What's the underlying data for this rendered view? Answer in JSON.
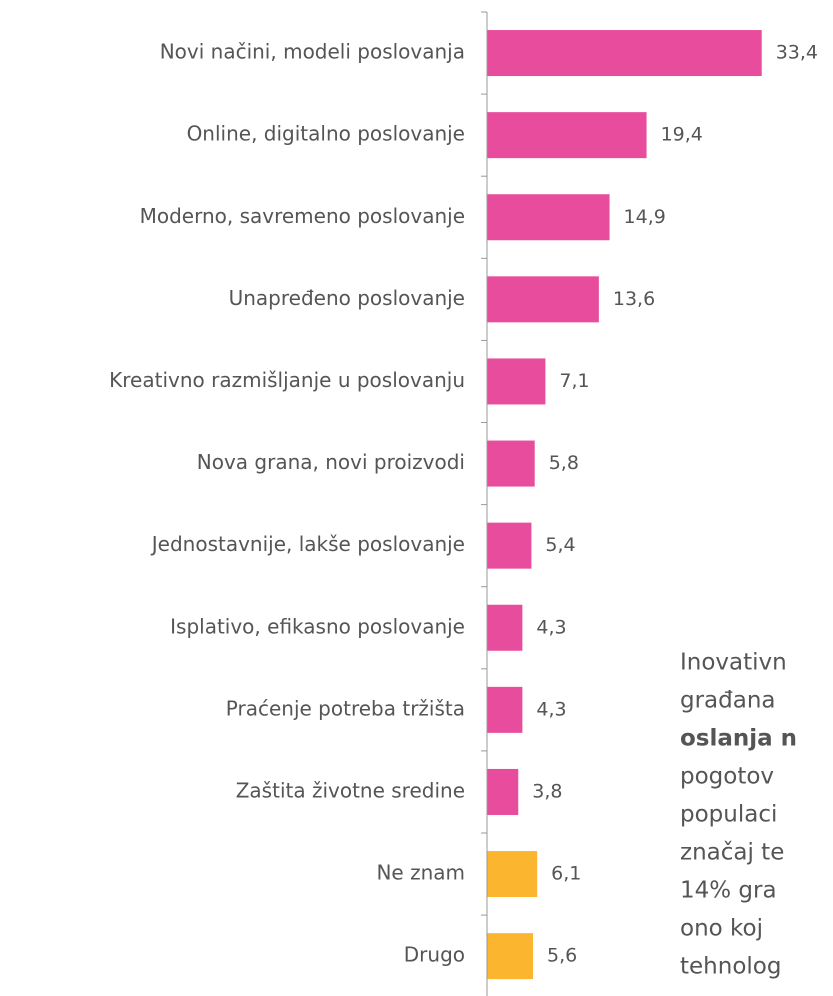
{
  "chart_data": {
    "type": "bar",
    "orientation": "horizontal",
    "categories": [
      "Novi načini, modeli poslovanja",
      "Online, digitalno poslovanje",
      "Moderno, savremeno poslovanje",
      "Unapređeno poslovanje",
      "Kreativno razmišljanje u poslovanju",
      "Nova grana, novi proizvodi",
      "Jednostavnije, lakše poslovanje",
      "Isplativo, efikasno poslovanje",
      "Praćenje potreba tržišta",
      "Zaštita životne sredine",
      "Ne znam",
      "Drugo"
    ],
    "values": [
      33.4,
      19.4,
      14.9,
      13.6,
      7.1,
      5.8,
      5.4,
      4.3,
      4.3,
      3.8,
      6.1,
      5.6
    ],
    "value_labels": [
      "33,4",
      "19,4",
      "14,9",
      "13,6",
      "7,1",
      "5,8",
      "5,4",
      "4,3",
      "4,3",
      "3,8",
      "6,1",
      "5,6"
    ],
    "colors": [
      "#e84c9c",
      "#e84c9c",
      "#e84c9c",
      "#e84c9c",
      "#e84c9c",
      "#e84c9c",
      "#e84c9c",
      "#e84c9c",
      "#e84c9c",
      "#e84c9c",
      "#fbb52e",
      "#fbb52e"
    ],
    "xlim": [
      0,
      40
    ]
  },
  "side_text": {
    "lines": [
      "Inovativn",
      "građana",
      "oslanja n",
      "pogotov",
      "populaci",
      "značaj te",
      "14% gra",
      "ono koj",
      "tehnolog"
    ],
    "bold_line": 2
  }
}
